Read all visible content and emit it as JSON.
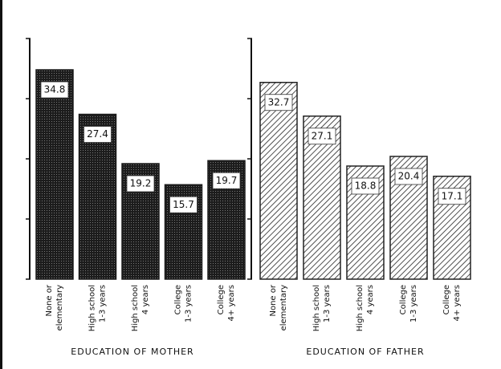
{
  "chart_data": [
    {
      "type": "bar",
      "title": "EDUCATION OF MOTHER",
      "categories": [
        [
          "None or",
          "elementary"
        ],
        [
          "High school",
          "1-3 years"
        ],
        [
          "High school",
          "4 years"
        ],
        [
          "College",
          "1-3 years"
        ],
        [
          "College",
          "4+ years"
        ]
      ],
      "values": [
        34.8,
        27.4,
        19.2,
        15.7,
        19.7
      ],
      "color": "#1c1c1c",
      "fill_style": "stippled",
      "ylim": [
        0,
        40
      ],
      "yticks": [
        0,
        10,
        20,
        30,
        40
      ]
    },
    {
      "type": "bar",
      "title": "EDUCATION OF FATHER",
      "categories": [
        [
          "None or",
          "elementary"
        ],
        [
          "High school",
          "1-3 years"
        ],
        [
          "High school",
          "4 years"
        ],
        [
          "College",
          "1-3 years"
        ],
        [
          "College",
          "4+ years"
        ]
      ],
      "values": [
        32.7,
        27.1,
        18.8,
        20.4,
        17.1
      ],
      "color": "#222222",
      "fill_style": "hatched",
      "ylim": [
        0,
        40
      ],
      "yticks": [
        0,
        10,
        20,
        30,
        40
      ]
    }
  ]
}
